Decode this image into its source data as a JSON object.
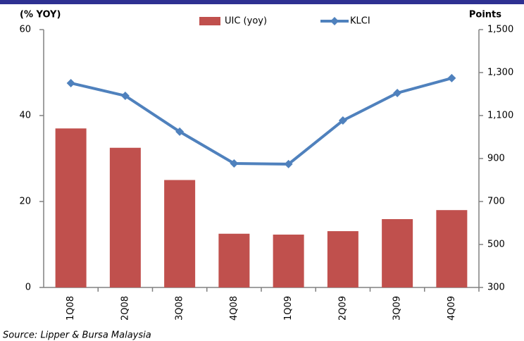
{
  "chart_data": {
    "type": "bar_line",
    "y_label": "(% YOY)",
    "y2_label": "Points",
    "source": "Source: Lipper & Bursa Malaysia",
    "categories": [
      "1Q08",
      "2Q08",
      "3Q08",
      "4Q08",
      "1Q09",
      "2Q09",
      "3Q09",
      "4Q09"
    ],
    "series": [
      {
        "name": "UIC (yoy)",
        "type": "bar",
        "color": "#c0504d",
        "values": [
          37,
          32.5,
          25,
          12.5,
          12.3,
          13.1,
          15.9,
          18
        ]
      },
      {
        "name": "KLCI",
        "type": "line",
        "axis": "y2",
        "color": "#4f81bd",
        "values": [
          1251,
          1192,
          1025,
          877,
          874,
          1077,
          1205,
          1274
        ]
      }
    ],
    "ylim": [
      0,
      60
    ],
    "yticks": [
      0,
      20,
      40,
      60
    ],
    "y2lim": [
      300,
      1500
    ],
    "y2ticks": [
      300,
      500,
      700,
      900,
      {
        "value": 1100,
        "label": "1,100"
      },
      {
        "value": 1300,
        "label": "1,300"
      },
      {
        "value": 1500,
        "label": "1,500"
      }
    ]
  }
}
